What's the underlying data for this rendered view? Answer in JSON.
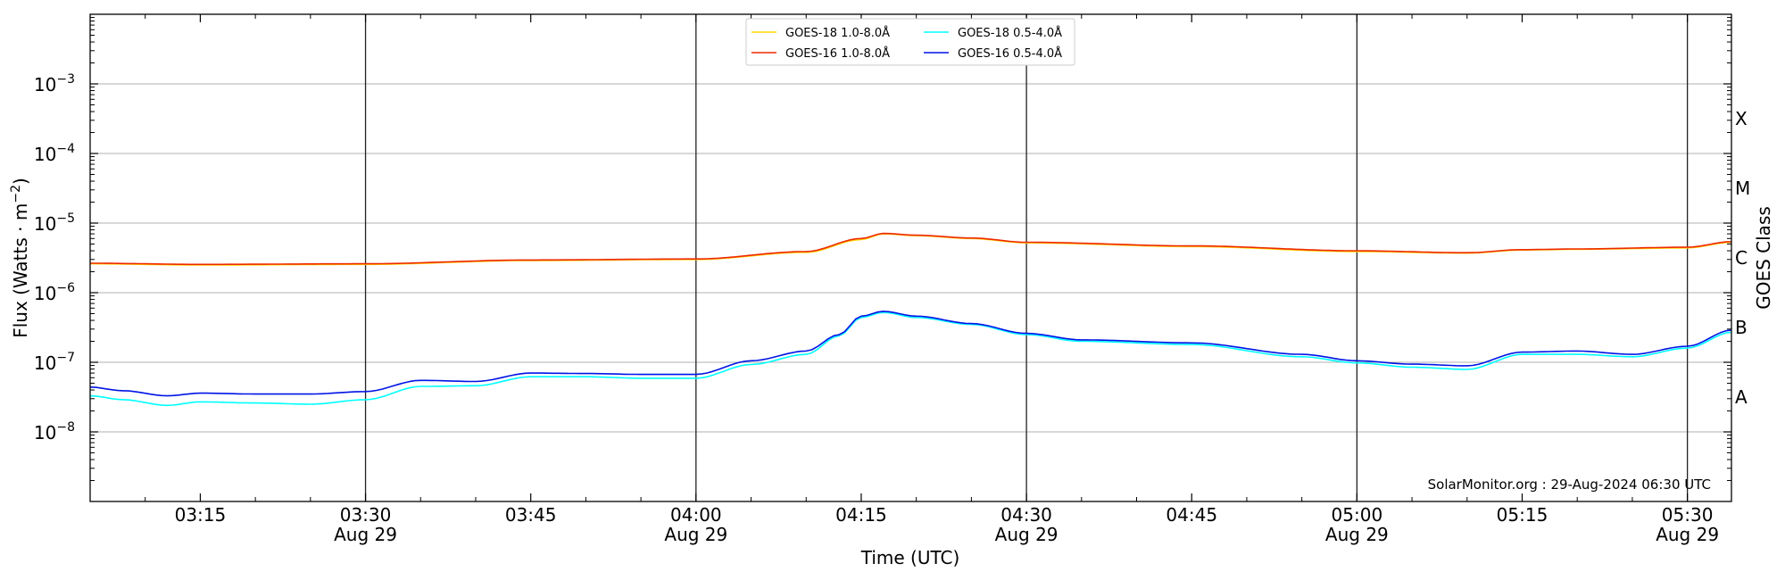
{
  "chart_data": {
    "type": "line",
    "xlabel": "Time (UTC)",
    "ylabel": "Flux (Watts · m",
    "ylabel_sup": "−2",
    "ylabel_close": ")",
    "ylabel_right": "GOES Class",
    "y_scale": "log",
    "ylim": [
      1e-09,
      0.01
    ],
    "xlim": [
      "2024-08-29T03:05",
      "2024-08-29T05:34"
    ],
    "grid": "horizontal at decades",
    "y_ticks": [
      {
        "value": 1e-08,
        "base": "10",
        "exp": "−8"
      },
      {
        "value": 1e-07,
        "base": "10",
        "exp": "−7"
      },
      {
        "value": 1e-06,
        "base": "10",
        "exp": "−6"
      },
      {
        "value": 1e-05,
        "base": "10",
        "exp": "−5"
      },
      {
        "value": 0.0001,
        "base": "10",
        "exp": "−4"
      },
      {
        "value": 0.001,
        "base": "10",
        "exp": "−3"
      }
    ],
    "goes_classes": [
      {
        "label": "A",
        "value": 3.16e-08
      },
      {
        "label": "B",
        "value": 3.16e-07
      },
      {
        "label": "C",
        "value": 3.16e-06
      },
      {
        "label": "M",
        "value": 3.16e-05
      },
      {
        "label": "X",
        "value": 0.000316
      }
    ],
    "x_ticks": [
      {
        "time": "03:15",
        "date": ""
      },
      {
        "time": "03:30",
        "date": "Aug 29"
      },
      {
        "time": "03:45",
        "date": ""
      },
      {
        "time": "04:00",
        "date": "Aug 29"
      },
      {
        "time": "04:15",
        "date": ""
      },
      {
        "time": "04:30",
        "date": "Aug 29"
      },
      {
        "time": "04:45",
        "date": ""
      },
      {
        "time": "05:00",
        "date": "Aug 29"
      },
      {
        "time": "05:15",
        "date": ""
      },
      {
        "time": "05:30",
        "date": "Aug 29"
      }
    ],
    "vertical_lines": [
      "03:30",
      "04:00",
      "04:30",
      "05:00",
      "05:30"
    ],
    "legend_position": "top-center",
    "watermark": "SolarMonitor.org : 29-Aug-2024 06:30 UTC",
    "series": [
      {
        "name": "GOES-18 1.0-8.0Å",
        "color": "#ffd700",
        "x": [
          "03:05",
          "03:15",
          "03:30",
          "03:45",
          "04:00",
          "04:10",
          "04:15",
          "04:17",
          "04:20",
          "04:25",
          "04:30",
          "04:45",
          "05:00",
          "05:10",
          "05:15",
          "05:20",
          "05:30",
          "05:34"
        ],
        "y": [
          2.6e-06,
          2.5e-06,
          2.55e-06,
          2.9e-06,
          3e-06,
          3.8e-06,
          5.8e-06,
          7e-06,
          6.6e-06,
          6e-06,
          5.2e-06,
          4.6e-06,
          3.9e-06,
          3.7e-06,
          4.1e-06,
          4.2e-06,
          4.4e-06,
          5.3e-06
        ]
      },
      {
        "name": "GOES-16 1.0-8.0Å",
        "color": "#ee2a00",
        "x": [
          "03:05",
          "03:15",
          "03:30",
          "03:45",
          "04:00",
          "04:10",
          "04:15",
          "04:17",
          "04:20",
          "04:25",
          "04:30",
          "04:45",
          "05:00",
          "05:10",
          "05:15",
          "05:20",
          "05:30",
          "05:34"
        ],
        "y": [
          2.65e-06,
          2.55e-06,
          2.6e-06,
          2.95e-06,
          3.05e-06,
          3.9e-06,
          6e-06,
          7.1e-06,
          6.7e-06,
          6.1e-06,
          5.3e-06,
          4.7e-06,
          4e-06,
          3.75e-06,
          4.15e-06,
          4.25e-06,
          4.5e-06,
          5.4e-06
        ]
      },
      {
        "name": "GOES-18 0.5-4.0Å",
        "color": "#00ffff",
        "x": [
          "03:05",
          "03:08",
          "03:12",
          "03:15",
          "03:20",
          "03:25",
          "03:30",
          "03:35",
          "03:40",
          "03:45",
          "03:50",
          "03:55",
          "04:00",
          "04:05",
          "04:10",
          "04:13",
          "04:15",
          "04:17",
          "04:20",
          "04:25",
          "04:30",
          "04:35",
          "04:45",
          "04:55",
          "05:00",
          "05:05",
          "05:10",
          "05:15",
          "05:20",
          "05:25",
          "05:30",
          "05:34"
        ],
        "y": [
          3.3e-08,
          2.9e-08,
          2.4e-08,
          2.7e-08,
          2.6e-08,
          2.5e-08,
          2.9e-08,
          4.5e-08,
          4.6e-08,
          6.2e-08,
          6.2e-08,
          5.9e-08,
          5.9e-08,
          9.3e-08,
          1.3e-07,
          2.4e-07,
          4.4e-07,
          5.2e-07,
          4.4e-07,
          3.5e-07,
          2.5e-07,
          2e-07,
          1.8e-07,
          1.2e-07,
          9.8e-08,
          8.5e-08,
          7.9e-08,
          1.3e-07,
          1.3e-07,
          1.2e-07,
          1.6e-07,
          2.7e-07
        ]
      },
      {
        "name": "GOES-16 0.5-4.0Å",
        "color": "#0014e6",
        "x": [
          "03:05",
          "03:08",
          "03:12",
          "03:15",
          "03:20",
          "03:25",
          "03:30",
          "03:35",
          "03:40",
          "03:45",
          "03:50",
          "03:55",
          "04:00",
          "04:05",
          "04:10",
          "04:13",
          "04:15",
          "04:17",
          "04:20",
          "04:25",
          "04:30",
          "04:35",
          "04:45",
          "04:55",
          "05:00",
          "05:05",
          "05:10",
          "05:15",
          "05:20",
          "05:25",
          "05:30",
          "05:34"
        ],
        "y": [
          4.4e-08,
          3.9e-08,
          3.3e-08,
          3.6e-08,
          3.5e-08,
          3.5e-08,
          3.8e-08,
          5.5e-08,
          5.3e-08,
          7e-08,
          6.9e-08,
          6.7e-08,
          6.7e-08,
          1.05e-07,
          1.45e-07,
          2.5e-07,
          4.6e-07,
          5.4e-07,
          4.6e-07,
          3.6e-07,
          2.6e-07,
          2.1e-07,
          1.9e-07,
          1.3e-07,
          1.05e-07,
          9.4e-08,
          8.9e-08,
          1.4e-07,
          1.45e-07,
          1.3e-07,
          1.7e-07,
          2.9e-07
        ]
      }
    ]
  }
}
